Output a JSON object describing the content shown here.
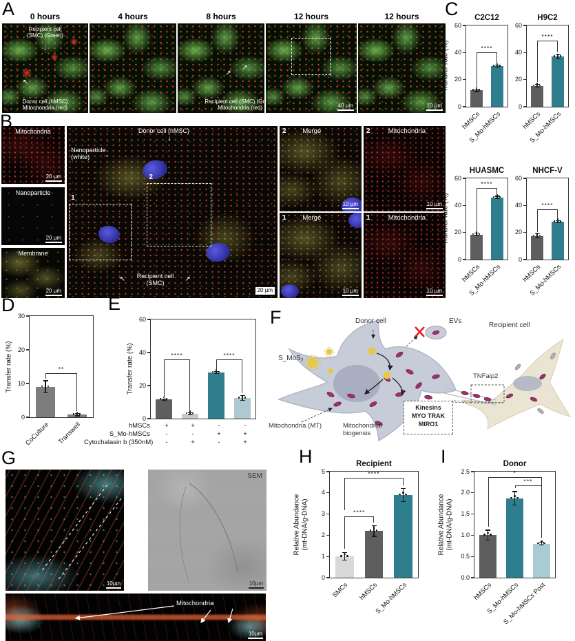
{
  "panels": {
    "A": {
      "label": "A",
      "titles": [
        "0 hours",
        "4 hours",
        "8 hours",
        "12 hours",
        "12 hours"
      ],
      "ann_recipient": "Recipient cell\n(SMC) (Green)",
      "ann_donor": "Donor cell (hMSC)\nMitochondria (red)",
      "ann_recipient8": "Recipient cell (SMC) (Green)\nMitochondria (red)",
      "scale_40": "40 µm",
      "scale_10": "10 µm"
    },
    "B": {
      "label": "B",
      "left_labels": [
        "Mitochondria",
        "Nanoparticle",
        "Membrane"
      ],
      "left_scale": "20 µm",
      "ann_donor": "Donor cell (hMSC)",
      "ann_nano": "Nanoparticle\n(white)",
      "ann_recipient": "Recipient cell\n(SMC)",
      "main_scale": "20 µm",
      "box1": "1",
      "box2": "2",
      "grid": [
        {
          "num": "2",
          "label": "Merge"
        },
        {
          "num": "2",
          "label": "Mitochondria"
        },
        {
          "num": "1",
          "label": "Merge"
        },
        {
          "num": "1",
          "label": "Mitochondria"
        }
      ],
      "grid_scale": "10 µm"
    },
    "C": {
      "label": "C"
    },
    "D": {
      "label": "D"
    },
    "E": {
      "label": "E",
      "matrix": {
        "rows": [
          {
            "label": "hMSCs",
            "cells": [
              "+",
              "+",
              "-",
              "-"
            ]
          },
          {
            "label": "S_Mo-hMSCs",
            "cells": [
              "-",
              "-",
              "+",
              "+"
            ]
          },
          {
            "label": "Cytochalasin b (350nM)",
            "cells": [
              "-",
              "+",
              "-",
              "+"
            ]
          }
        ]
      }
    },
    "F": {
      "label": "F",
      "donor": "Donor cell",
      "evs": "EVs",
      "recipient": "Recipient cell",
      "smos2_base": "S_MoS",
      "smos2_sub": "2",
      "tnfaip2": "TNFaip2",
      "kinesins": "Kinesins",
      "kinesins_line2": "MYO TRAK",
      "kinesins_line3": "MIRO1",
      "mito": "Mitochondria (MT)",
      "biogenesis": "Mitochondrial\nbiogensis"
    },
    "G": {
      "label": "G",
      "sem": "SEM",
      "mito": "Mitochondria",
      "scale": "10µm"
    },
    "H": {
      "label": "H"
    },
    "I": {
      "label": "I"
    }
  },
  "icons": {
    "arrow_down": "↓",
    "arrow_up_left": "↖",
    "arrow_up_right": "↗",
    "arrow_right": "→"
  },
  "chart_data": [
    {
      "type": "bar",
      "title": "C2C12",
      "ylabel": "Transfer rate (%)",
      "ylim": [
        0,
        60
      ],
      "yticks": [
        "0",
        "20",
        "40",
        "60"
      ],
      "categories": [
        "hMSCs",
        "S_Mo-hMSCs"
      ],
      "values": [
        12,
        30
      ],
      "errors": [
        0.8,
        0.6
      ],
      "colors": [
        "#5e5e5e",
        "#2f7e8e"
      ],
      "sig": [
        {
          "from": 0,
          "to": 1,
          "label": "****",
          "y": 40
        }
      ]
    },
    {
      "type": "bar",
      "title": "H9C2",
      "ylabel": "",
      "ylim": [
        0,
        60
      ],
      "yticks": [
        "0",
        "20",
        "40",
        "60"
      ],
      "categories": [
        "hMSCs",
        "S_Mo-hMSCs"
      ],
      "values": [
        15.5,
        37
      ],
      "errors": [
        1.2,
        1.5
      ],
      "colors": [
        "#5e5e5e",
        "#2f7e8e"
      ],
      "sig": [
        {
          "from": 0,
          "to": 1,
          "label": "****",
          "y": 49
        }
      ]
    },
    {
      "type": "bar",
      "title": "HUASMC",
      "ylabel": "Transfer rate (%)",
      "ylim": [
        0,
        60
      ],
      "yticks": [
        "0",
        "20",
        "40",
        "60"
      ],
      "categories": [
        "hMSCs",
        "S_Mo-hMSCs"
      ],
      "values": [
        18.5,
        46
      ],
      "errors": [
        1,
        0.8
      ],
      "colors": [
        "#5e5e5e",
        "#2f7e8e"
      ],
      "sig": [
        {
          "from": 0,
          "to": 1,
          "label": "****",
          "y": 53
        }
      ]
    },
    {
      "type": "bar",
      "title": "NHCF-V",
      "ylabel": "",
      "ylim": [
        0,
        60
      ],
      "yticks": [
        "0",
        "20",
        "40",
        "60"
      ],
      "categories": [
        "hMSCs",
        "S_Mo-hMSCs"
      ],
      "values": [
        17.5,
        28
      ],
      "errors": [
        1.5,
        0.7
      ],
      "colors": [
        "#5e5e5e",
        "#2f7e8e"
      ],
      "sig": [
        {
          "from": 0,
          "to": 1,
          "label": "****",
          "y": 37
        }
      ]
    },
    {
      "type": "bar",
      "title": "",
      "ylabel": "Transfer rate (%)",
      "ylim": [
        0,
        30
      ],
      "yticks": [
        "0",
        "10",
        "20",
        "30"
      ],
      "categories": [
        "CoCulture",
        "Transwell"
      ],
      "values": [
        9,
        0.8
      ],
      "errors": [
        1.8,
        0.4
      ],
      "colors": [
        "#7d7d7d",
        "#7d7d7d"
      ],
      "sig": [
        {
          "from": 0,
          "to": 1,
          "label": "**",
          "y": 13
        }
      ]
    },
    {
      "type": "bar",
      "title": "",
      "ylabel": "Transfer rate (%)",
      "ylim": [
        0,
        60
      ],
      "yticks": [
        "0",
        "20",
        "40",
        "60"
      ],
      "categories": [
        "",
        "",
        "",
        ""
      ],
      "values": [
        11.5,
        3,
        28,
        12.5
      ],
      "errors": [
        0.5,
        0.6,
        0.7,
        1.5
      ],
      "colors": [
        "#5e5e5e",
        "#c9c9c9",
        "#2f7e8e",
        "#aec9d2"
      ],
      "sig": [
        {
          "from": 0,
          "to": 1,
          "label": "****",
          "y": 36
        },
        {
          "from": 2,
          "to": 3,
          "label": "****",
          "y": 36
        }
      ]
    },
    {
      "type": "bar",
      "title": "Recipient",
      "ylabel": "Relative Abundance\n(mt-DNA/g-DNA)",
      "ylim": [
        0,
        5
      ],
      "yticks": [
        "0",
        "1",
        "2",
        "3",
        "4",
        "5"
      ],
      "categories": [
        "SMCs",
        "hMSCs",
        "S_Mo-hMSCs"
      ],
      "values": [
        1.0,
        2.2,
        3.9
      ],
      "errors": [
        0.18,
        0.25,
        0.3
      ],
      "colors": [
        "#d9d9d9",
        "#5e5e5e",
        "#2f7e8e"
      ],
      "sig": [
        {
          "from": 0,
          "to": 1,
          "label": "****",
          "y": 2.9,
          "ends": [
            1.25,
            2.5
          ]
        },
        {
          "from": 0,
          "to": 2,
          "label": "****",
          "y": 4.72,
          "ends": [
            3.1,
            4.25
          ]
        }
      ]
    },
    {
      "type": "bar",
      "title": "Donor",
      "ylabel": "Relative Abundance\n(mt-DNA/g-DNA)",
      "ylim": [
        0,
        2.5
      ],
      "yticks": [
        "0.0",
        "0.5",
        "1.0",
        "1.5",
        "2.0",
        "2.5"
      ],
      "categories": [
        "hMSCs",
        "S_Mo-hMSCs",
        "S_Mo-hMSCs Post"
      ],
      "values": [
        1.0,
        1.87,
        0.8
      ],
      "errors": [
        0.12,
        0.16,
        0.03
      ],
      "colors": [
        "#5e5e5e",
        "#2f7e8e",
        "#a9ccd4"
      ],
      "sig": [
        {
          "from": 0,
          "to": 2,
          "label": "*",
          "y": 2.37,
          "ends": [
            1.16,
            0.9
          ]
        },
        {
          "from": 1,
          "to": 2,
          "label": "***",
          "y": 2.18,
          "ends": [
            2.06,
            0.9
          ]
        }
      ]
    }
  ]
}
